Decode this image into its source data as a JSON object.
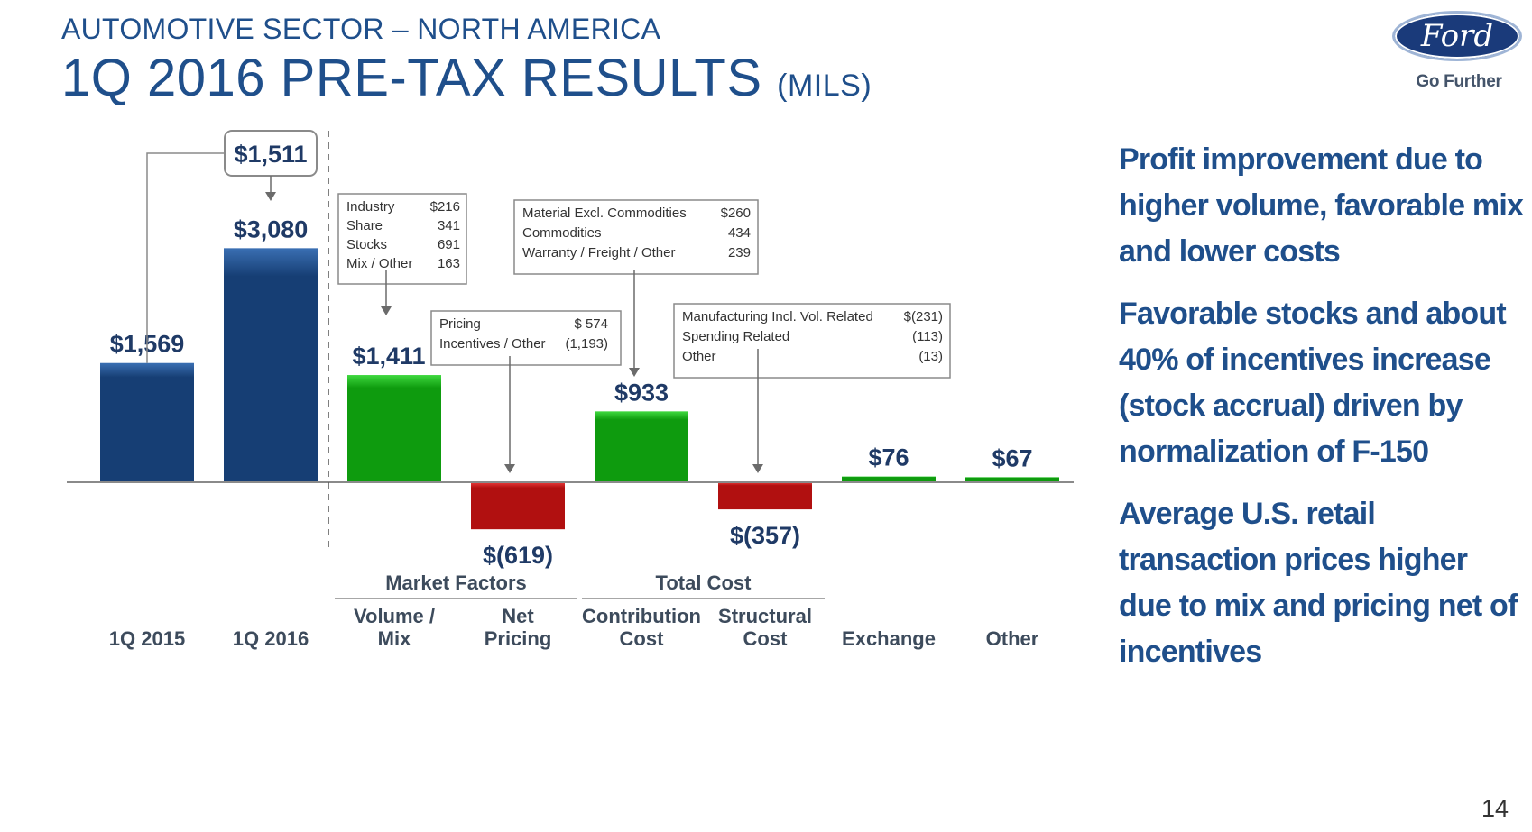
{
  "header": {
    "sector": "AUTOMOTIVE SECTOR – NORTH AMERICA",
    "title": "1Q 2016 PRE-TAX RESULTS",
    "units": "(MILS)"
  },
  "logo": {
    "wordmark": "Ford",
    "tagline": "Go Further"
  },
  "chart_data": {
    "type": "bar",
    "subtype": "waterfall",
    "categories": [
      [
        "1Q 2015"
      ],
      [
        "1Q 2016"
      ],
      [
        "Volume /",
        "Mix"
      ],
      [
        "Net",
        "Pricing"
      ],
      [
        "Contribution",
        "Cost"
      ],
      [
        "Structural",
        "Cost"
      ],
      [
        "Exchange"
      ],
      [
        "Other"
      ]
    ],
    "values": [
      1569,
      3080,
      1411,
      -619,
      933,
      -357,
      76,
      67
    ],
    "value_labels": [
      "$1,569",
      "$3,080",
      "$1,411",
      "$(619)",
      "$933",
      "$(357)",
      "$76",
      "$67"
    ],
    "colors": [
      "#1d4e8f",
      "#1d4e8f",
      "#17b817",
      "#d01a1a",
      "#17b817",
      "#d01a1a",
      "#17b817",
      "#17b817"
    ],
    "change": {
      "label": "$1,511",
      "value": 1511
    },
    "groups": [
      {
        "label": "Market Factors",
        "from": 2,
        "to": 3
      },
      {
        "label": "Total Cost",
        "from": 4,
        "to": 5
      }
    ],
    "breakdowns": [
      {
        "target": 2,
        "rows": [
          [
            "Industry",
            "$216"
          ],
          [
            "Share",
            "341"
          ],
          [
            "Stocks",
            "691"
          ],
          [
            "Mix / Other",
            "163"
          ]
        ]
      },
      {
        "target": 3,
        "rows": [
          [
            "Pricing",
            "$   574"
          ],
          [
            "Incentives / Other",
            "(1,193)"
          ]
        ]
      },
      {
        "target": 4,
        "rows": [
          [
            "Material Excl. Commodities",
            "$260"
          ],
          [
            "Commodities",
            "434"
          ],
          [
            "Warranty / Freight / Other",
            "239"
          ]
        ]
      },
      {
        "target": 5,
        "rows": [
          [
            "Manufacturing Incl. Vol. Related",
            "$(231)"
          ],
          [
            "Spending Related",
            "(113)"
          ],
          [
            "Other",
            "(13)"
          ]
        ]
      }
    ]
  },
  "commentary": [
    "Profit improvement due to higher volume, favorable mix and lower costs",
    "Favorable stocks and about 40% of incentives increase (stock accrual) driven by normalization of F-150",
    "Average U.S. retail transaction prices higher due to mix and pricing net of incentives"
  ],
  "page_number": "14"
}
